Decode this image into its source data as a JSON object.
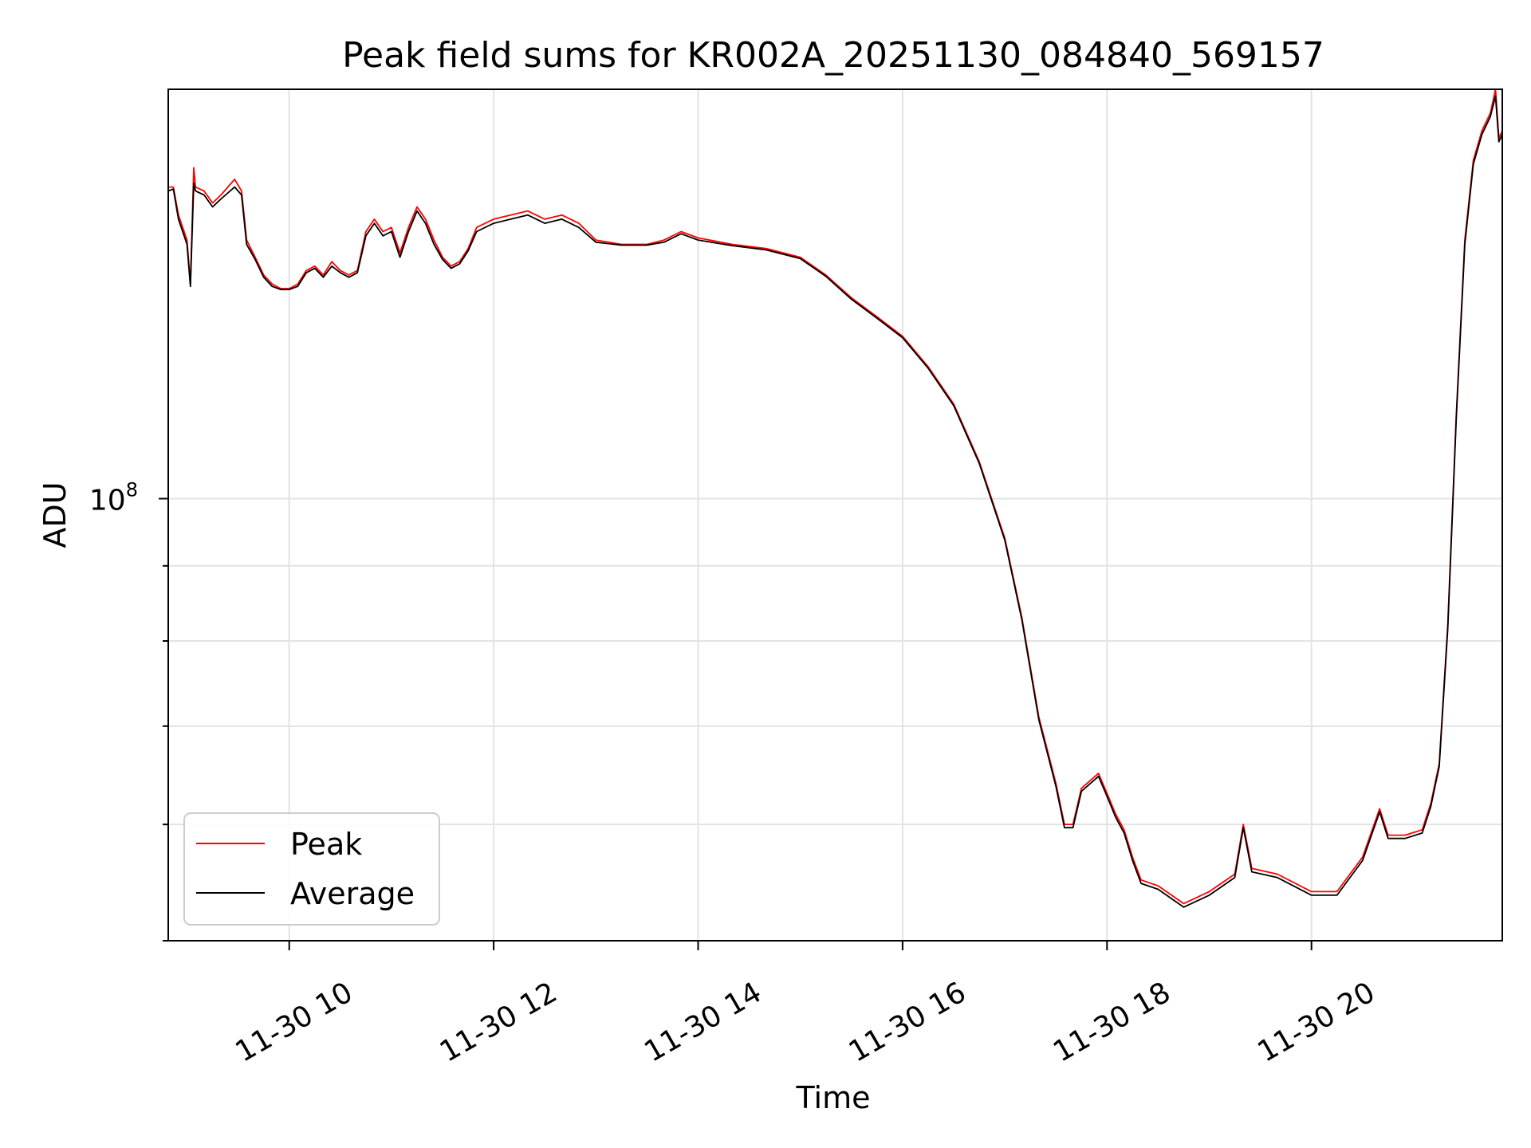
{
  "chart_data": {
    "type": "line",
    "title": "Peak field sums for KR002A_20251130_084840_569157",
    "xlabel": "Time",
    "ylabel": "ADU",
    "yscale": "log",
    "xlim": [
      "2025-11-30 08:49",
      "2025-11-30 21:52"
    ],
    "ylim": [
      50000000,
      190000000
    ],
    "grid": true,
    "legend_position": "lower left",
    "x_ticks": [
      {
        "x": "2025-11-30 10:00",
        "label": "11-30 10"
      },
      {
        "x": "2025-11-30 12:00",
        "label": "11-30 12"
      },
      {
        "x": "2025-11-30 14:00",
        "label": "11-30 14"
      },
      {
        "x": "2025-11-30 16:00",
        "label": "11-30 16"
      },
      {
        "x": "2025-11-30 18:00",
        "label": "11-30 18"
      },
      {
        "x": "2025-11-30 20:00",
        "label": "11-30 20"
      }
    ],
    "y_ticks": [
      {
        "y": 100000000,
        "base": "10",
        "exp": "8"
      }
    ],
    "y_minor_ticks": [
      50000000,
      60000000,
      70000000,
      80000000,
      90000000
    ],
    "series": [
      {
        "name": "Peak",
        "color": "#ff0000",
        "points": [
          [
            "2025-11-30 08:49",
            163000000
          ],
          [
            "2025-11-30 08:52",
            163000000
          ],
          [
            "2025-11-30 08:55",
            156000000
          ],
          [
            "2025-11-30 09:00",
            150000000
          ],
          [
            "2025-11-30 09:02",
            140000000
          ],
          [
            "2025-11-30 09:04",
            168000000
          ],
          [
            "2025-11-30 09:05",
            163000000
          ],
          [
            "2025-11-30 09:10",
            162000000
          ],
          [
            "2025-11-30 09:15",
            159000000
          ],
          [
            "2025-11-30 09:20",
            161000000
          ],
          [
            "2025-11-30 09:28",
            165000000
          ],
          [
            "2025-11-30 09:32",
            162000000
          ],
          [
            "2025-11-30 09:35",
            150000000
          ],
          [
            "2025-11-30 09:40",
            146000000
          ],
          [
            "2025-11-30 09:45",
            142000000
          ],
          [
            "2025-11-30 09:50",
            140000000
          ],
          [
            "2025-11-30 09:55",
            139000000
          ],
          [
            "2025-11-30 10:00",
            139000000
          ],
          [
            "2025-11-30 10:05",
            140000000
          ],
          [
            "2025-11-30 10:10",
            143000000
          ],
          [
            "2025-11-30 10:15",
            144000000
          ],
          [
            "2025-11-30 10:20",
            142000000
          ],
          [
            "2025-11-30 10:25",
            145000000
          ],
          [
            "2025-11-30 10:30",
            143000000
          ],
          [
            "2025-11-30 10:35",
            142000000
          ],
          [
            "2025-11-30 10:40",
            143000000
          ],
          [
            "2025-11-30 10:45",
            152000000
          ],
          [
            "2025-11-30 10:50",
            155000000
          ],
          [
            "2025-11-30 10:55",
            152000000
          ],
          [
            "2025-11-30 11:00",
            153000000
          ],
          [
            "2025-11-30 11:05",
            147000000
          ],
          [
            "2025-11-30 11:10",
            153000000
          ],
          [
            "2025-11-30 11:15",
            158000000
          ],
          [
            "2025-11-30 11:20",
            155000000
          ],
          [
            "2025-11-30 11:25",
            150000000
          ],
          [
            "2025-11-30 11:30",
            146000000
          ],
          [
            "2025-11-30 11:35",
            144000000
          ],
          [
            "2025-11-30 11:40",
            145000000
          ],
          [
            "2025-11-30 11:45",
            148000000
          ],
          [
            "2025-11-30 11:50",
            153000000
          ],
          [
            "2025-11-30 12:00",
            155000000
          ],
          [
            "2025-11-30 12:10",
            156000000
          ],
          [
            "2025-11-30 12:20",
            157000000
          ],
          [
            "2025-11-30 12:30",
            155000000
          ],
          [
            "2025-11-30 12:40",
            156000000
          ],
          [
            "2025-11-30 12:50",
            154000000
          ],
          [
            "2025-11-30 13:00",
            150000000
          ],
          [
            "2025-11-30 13:15",
            149000000
          ],
          [
            "2025-11-30 13:30",
            149000000
          ],
          [
            "2025-11-30 13:40",
            150000000
          ],
          [
            "2025-11-30 13:50",
            152000000
          ],
          [
            "2025-11-30 14:00",
            150500000
          ],
          [
            "2025-11-30 14:20",
            149000000
          ],
          [
            "2025-11-30 14:40",
            148000000
          ],
          [
            "2025-11-30 15:00",
            146000000
          ],
          [
            "2025-11-30 15:15",
            142000000
          ],
          [
            "2025-11-30 15:30",
            137000000
          ],
          [
            "2025-11-30 15:45",
            133000000
          ],
          [
            "2025-11-30 16:00",
            129000000
          ],
          [
            "2025-11-30 16:15",
            123000000
          ],
          [
            "2025-11-30 16:30",
            116000000
          ],
          [
            "2025-11-30 16:45",
            106000000
          ],
          [
            "2025-11-30 17:00",
            94000000
          ],
          [
            "2025-11-30 17:10",
            83000000
          ],
          [
            "2025-11-30 17:20",
            71000000
          ],
          [
            "2025-11-30 17:30",
            64000000
          ],
          [
            "2025-11-30 17:35",
            60000000
          ],
          [
            "2025-11-30 17:40",
            60000000
          ],
          [
            "2025-11-30 17:45",
            63500000
          ],
          [
            "2025-11-30 17:55",
            65000000
          ],
          [
            "2025-11-30 18:00",
            63000000
          ],
          [
            "2025-11-30 18:05",
            61000000
          ],
          [
            "2025-11-30 18:10",
            59500000
          ],
          [
            "2025-11-30 18:15",
            57000000
          ],
          [
            "2025-11-30 18:20",
            55000000
          ],
          [
            "2025-11-30 18:30",
            54500000
          ],
          [
            "2025-11-30 18:45",
            53000000
          ],
          [
            "2025-11-30 19:00",
            54000000
          ],
          [
            "2025-11-30 19:15",
            55500000
          ],
          [
            "2025-11-30 19:20",
            60000000
          ],
          [
            "2025-11-30 19:25",
            56000000
          ],
          [
            "2025-11-30 19:40",
            55500000
          ],
          [
            "2025-11-30 20:00",
            54000000
          ],
          [
            "2025-11-30 20:15",
            54000000
          ],
          [
            "2025-11-30 20:30",
            57000000
          ],
          [
            "2025-11-30 20:40",
            61500000
          ],
          [
            "2025-11-30 20:45",
            59000000
          ],
          [
            "2025-11-30 20:55",
            59000000
          ],
          [
            "2025-11-30 21:05",
            59500000
          ],
          [
            "2025-11-30 21:10",
            62000000
          ],
          [
            "2025-11-30 21:15",
            66000000
          ],
          [
            "2025-11-30 21:20",
            82000000
          ],
          [
            "2025-11-30 21:25",
            114000000
          ],
          [
            "2025-11-30 21:30",
            150000000
          ],
          [
            "2025-11-30 21:35",
            170000000
          ],
          [
            "2025-11-30 21:40",
            178000000
          ],
          [
            "2025-11-30 21:45",
            183000000
          ],
          [
            "2025-11-30 21:48",
            190000000
          ],
          [
            "2025-11-30 21:50",
            176000000
          ],
          [
            "2025-11-30 21:52",
            178000000
          ]
        ]
      },
      {
        "name": "Average",
        "color": "#000000",
        "points": [
          [
            "2025-11-30 08:49",
            162000000
          ],
          [
            "2025-11-30 08:52",
            162500000
          ],
          [
            "2025-11-30 08:55",
            155000000
          ],
          [
            "2025-11-30 09:00",
            149000000
          ],
          [
            "2025-11-30 09:02",
            139500000
          ],
          [
            "2025-11-30 09:04",
            164000000
          ],
          [
            "2025-11-30 09:05",
            162000000
          ],
          [
            "2025-11-30 09:10",
            161000000
          ],
          [
            "2025-11-30 09:15",
            158000000
          ],
          [
            "2025-11-30 09:20",
            160000000
          ],
          [
            "2025-11-30 09:28",
            163000000
          ],
          [
            "2025-11-30 09:32",
            161000000
          ],
          [
            "2025-11-30 09:35",
            149000000
          ],
          [
            "2025-11-30 09:40",
            145500000
          ],
          [
            "2025-11-30 09:45",
            141500000
          ],
          [
            "2025-11-30 09:50",
            139500000
          ],
          [
            "2025-11-30 09:55",
            138800000
          ],
          [
            "2025-11-30 10:00",
            138800000
          ],
          [
            "2025-11-30 10:05",
            139500000
          ],
          [
            "2025-11-30 10:10",
            142500000
          ],
          [
            "2025-11-30 10:15",
            143500000
          ],
          [
            "2025-11-30 10:20",
            141500000
          ],
          [
            "2025-11-30 10:25",
            144000000
          ],
          [
            "2025-11-30 10:30",
            142500000
          ],
          [
            "2025-11-30 10:35",
            141500000
          ],
          [
            "2025-11-30 10:40",
            142500000
          ],
          [
            "2025-11-30 10:45",
            151000000
          ],
          [
            "2025-11-30 10:50",
            154000000
          ],
          [
            "2025-11-30 10:55",
            151000000
          ],
          [
            "2025-11-30 11:00",
            152000000
          ],
          [
            "2025-11-30 11:05",
            146000000
          ],
          [
            "2025-11-30 11:10",
            152000000
          ],
          [
            "2025-11-30 11:15",
            157000000
          ],
          [
            "2025-11-30 11:20",
            154000000
          ],
          [
            "2025-11-30 11:25",
            149000000
          ],
          [
            "2025-11-30 11:30",
            145500000
          ],
          [
            "2025-11-30 11:35",
            143500000
          ],
          [
            "2025-11-30 11:40",
            144500000
          ],
          [
            "2025-11-30 11:45",
            147500000
          ],
          [
            "2025-11-30 11:50",
            152000000
          ],
          [
            "2025-11-30 12:00",
            154000000
          ],
          [
            "2025-11-30 12:10",
            155000000
          ],
          [
            "2025-11-30 12:20",
            156000000
          ],
          [
            "2025-11-30 12:30",
            154000000
          ],
          [
            "2025-11-30 12:40",
            155000000
          ],
          [
            "2025-11-30 12:50",
            153000000
          ],
          [
            "2025-11-30 13:00",
            149500000
          ],
          [
            "2025-11-30 13:15",
            148800000
          ],
          [
            "2025-11-30 13:30",
            148800000
          ],
          [
            "2025-11-30 13:40",
            149500000
          ],
          [
            "2025-11-30 13:50",
            151500000
          ],
          [
            "2025-11-30 14:00",
            150000000
          ],
          [
            "2025-11-30 14:20",
            148700000
          ],
          [
            "2025-11-30 14:40",
            147700000
          ],
          [
            "2025-11-30 15:00",
            145700000
          ],
          [
            "2025-11-30 15:15",
            141700000
          ],
          [
            "2025-11-30 15:30",
            136700000
          ],
          [
            "2025-11-30 15:45",
            132700000
          ],
          [
            "2025-11-30 16:00",
            128700000
          ],
          [
            "2025-11-30 16:15",
            122700000
          ],
          [
            "2025-11-30 16:30",
            115700000
          ],
          [
            "2025-11-30 16:45",
            105700000
          ],
          [
            "2025-11-30 17:00",
            93700000
          ],
          [
            "2025-11-30 17:10",
            82700000
          ],
          [
            "2025-11-30 17:20",
            70700000
          ],
          [
            "2025-11-30 17:30",
            63700000
          ],
          [
            "2025-11-30 17:35",
            59700000
          ],
          [
            "2025-11-30 17:40",
            59700000
          ],
          [
            "2025-11-30 17:45",
            63200000
          ],
          [
            "2025-11-30 17:55",
            64700000
          ],
          [
            "2025-11-30 18:00",
            62700000
          ],
          [
            "2025-11-30 18:05",
            60700000
          ],
          [
            "2025-11-30 18:10",
            59200000
          ],
          [
            "2025-11-30 18:15",
            56700000
          ],
          [
            "2025-11-30 18:20",
            54700000
          ],
          [
            "2025-11-30 18:30",
            54200000
          ],
          [
            "2025-11-30 18:45",
            52700000
          ],
          [
            "2025-11-30 19:00",
            53700000
          ],
          [
            "2025-11-30 19:15",
            55200000
          ],
          [
            "2025-11-30 19:20",
            59700000
          ],
          [
            "2025-11-30 19:25",
            55700000
          ],
          [
            "2025-11-30 19:40",
            55200000
          ],
          [
            "2025-11-30 20:00",
            53700000
          ],
          [
            "2025-11-30 20:15",
            53700000
          ],
          [
            "2025-11-30 20:30",
            56700000
          ],
          [
            "2025-11-30 20:40",
            61200000
          ],
          [
            "2025-11-30 20:45",
            58700000
          ],
          [
            "2025-11-30 20:55",
            58700000
          ],
          [
            "2025-11-30 21:05",
            59200000
          ],
          [
            "2025-11-30 21:10",
            61700000
          ],
          [
            "2025-11-30 21:15",
            65700000
          ],
          [
            "2025-11-30 21:20",
            81500000
          ],
          [
            "2025-11-30 21:25",
            113500000
          ],
          [
            "2025-11-30 21:30",
            149000000
          ],
          [
            "2025-11-30 21:35",
            169000000
          ],
          [
            "2025-11-30 21:40",
            177000000
          ],
          [
            "2025-11-30 21:45",
            182000000
          ],
          [
            "2025-11-30 21:48",
            188000000
          ],
          [
            "2025-11-30 21:50",
            175000000
          ],
          [
            "2025-11-30 21:52",
            177000000
          ]
        ]
      }
    ]
  }
}
